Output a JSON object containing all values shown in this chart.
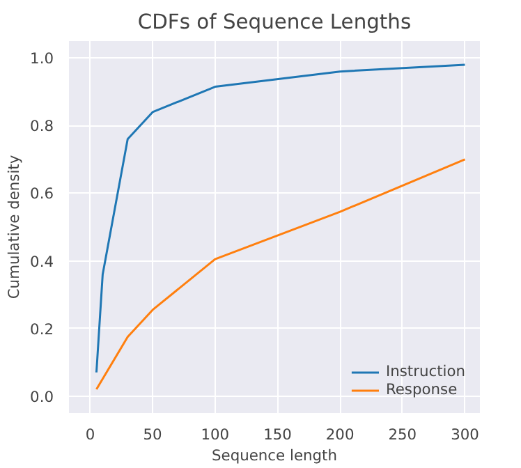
{
  "chart_data": {
    "type": "line",
    "title": "CDFs of Sequence Lengths",
    "xlabel": "Sequence length",
    "ylabel": "Cumulative density",
    "xlim": [
      -17,
      312
    ],
    "ylim": [
      -0.05,
      1.05
    ],
    "xticks": [
      0,
      50,
      100,
      150,
      200,
      250,
      300
    ],
    "yticks": [
      {
        "value": 0,
        "label": "0.0"
      },
      {
        "value": 0.2,
        "label": "0.2"
      },
      {
        "value": 0.4,
        "label": "0.4"
      },
      {
        "value": 0.6,
        "label": "0.6"
      },
      {
        "value": 0.8,
        "label": "0.8"
      },
      {
        "value": 1,
        "label": "1.0"
      }
    ],
    "grid": true,
    "legend": "bottom right",
    "series": [
      {
        "name": "Instruction",
        "color": "#1f77b4",
        "x": [
          5,
          10,
          30,
          50,
          100,
          200,
          300
        ],
        "values": [
          0.07,
          0.36,
          0.76,
          0.84,
          0.915,
          0.96,
          0.98
        ]
      },
      {
        "name": "Response",
        "color": "#ff7f0e",
        "x": [
          5,
          30,
          50,
          100,
          200,
          300
        ],
        "values": [
          0.02,
          0.175,
          0.255,
          0.405,
          0.545,
          0.7
        ]
      }
    ]
  }
}
